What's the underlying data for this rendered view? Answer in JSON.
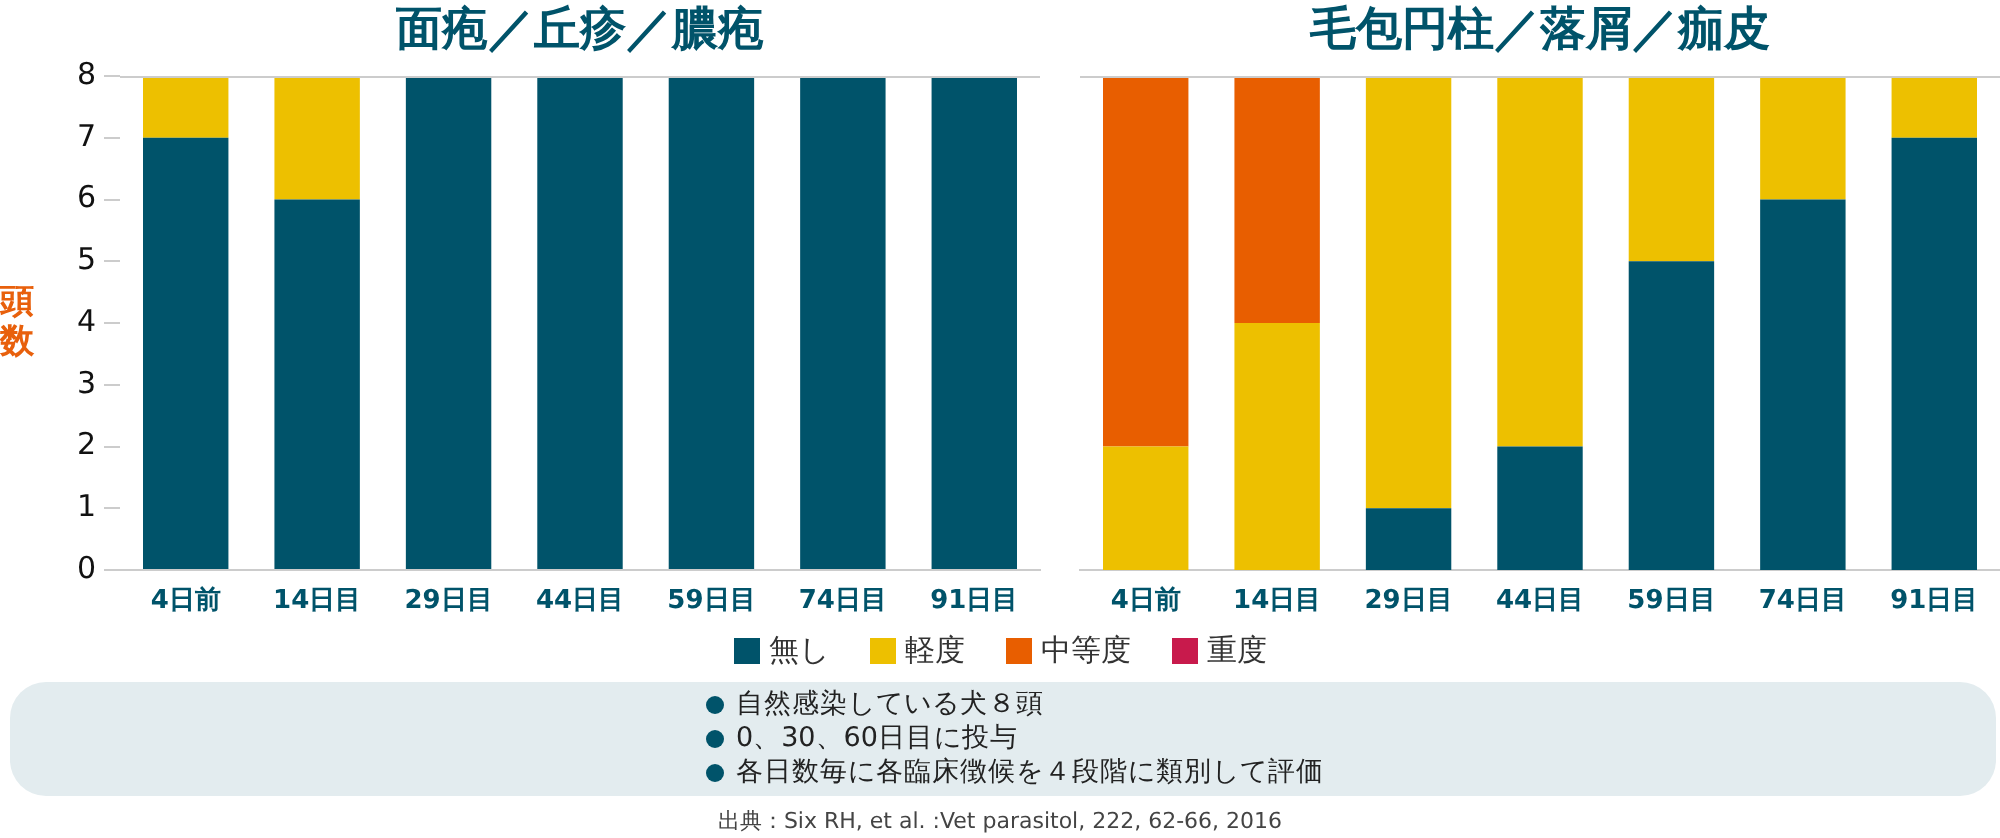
{
  "chart_data": [
    {
      "type": "bar",
      "title": "面疱／丘疹／膿疱",
      "ylabel": "頭数",
      "categories": [
        "4日前",
        "14日目",
        "29日目",
        "44日目",
        "59日目",
        "74日目",
        "91日目"
      ],
      "series": [
        {
          "name": "無し",
          "color": "#00536a",
          "values": [
            7,
            6,
            8,
            8,
            8,
            8,
            8
          ]
        },
        {
          "name": "軽度",
          "color": "#edc000",
          "values": [
            1,
            2,
            0,
            0,
            0,
            0,
            0
          ]
        },
        {
          "name": "中等度",
          "color": "#e85e00",
          "values": [
            0,
            0,
            0,
            0,
            0,
            0,
            0
          ]
        },
        {
          "name": "重度",
          "color": "#c81a4c",
          "values": [
            0,
            0,
            0,
            0,
            0,
            0,
            0
          ]
        }
      ],
      "stacked": true,
      "ylim": [
        0,
        8
      ],
      "yticks": [
        0,
        1,
        2,
        3,
        4,
        5,
        6,
        7,
        8
      ],
      "grid": false,
      "legend": "bottom",
      "annotations": [
        "自然感染している犬８頭",
        "0、30、60日目に投与",
        "各日数毎に各臨床徴候を４段階に類別して評価",
        "出典：Six RH, et al. :Vet parasitol, 222, 62-66, 2016"
      ]
    },
    {
      "type": "bar",
      "title": "毛包円柱／落屑／痂皮",
      "categories": [
        "4日前",
        "14日目",
        "29日目",
        "44日目",
        "59日目",
        "74日目",
        "91日目"
      ],
      "series": [
        {
          "color": "#00536a",
          "values": [
            0,
            0,
            1,
            2,
            5,
            6,
            7
          ]
        },
        {
          "color": "#edc000",
          "values": [
            2,
            4,
            7,
            6,
            3,
            2,
            1
          ]
        },
        {
          "color": "#e85e00",
          "values": [
            6,
            4,
            0,
            0,
            0,
            0,
            0
          ]
        },
        {
          "color": "#c81a4c",
          "values": [
            0,
            0,
            0,
            0,
            0,
            0,
            0
          ]
        }
      ],
      "stacked": true,
      "ylim": [
        0,
        8
      ],
      "yticks": [
        0,
        1,
        2,
        3,
        4,
        5,
        6,
        7,
        8
      ],
      "tick_labels": "x",
      "grid": false
    }
  ]
}
